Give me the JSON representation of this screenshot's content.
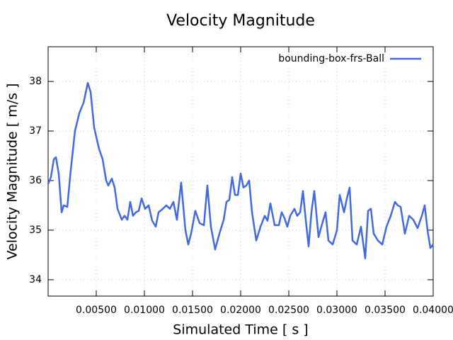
{
  "chart_data": {
    "type": "line",
    "title": "Velocity Magnitude",
    "x_label": "Simulated Time [ s ]",
    "y_label": "Velocity Magnitude [ m/s ]",
    "x": [
      0,
      0.00029,
      0.00059,
      0.00081,
      0.0011,
      0.0014,
      0.00162,
      0.00199,
      0.00235,
      0.00279,
      0.00324,
      0.00368,
      0.00412,
      0.00441,
      0.00478,
      0.00529,
      0.00566,
      0.00603,
      0.00625,
      0.00662,
      0.00691,
      0.00721,
      0.00765,
      0.00794,
      0.00824,
      0.00853,
      0.00882,
      0.00912,
      0.00941,
      0.00971,
      0.01007,
      0.01044,
      0.01081,
      0.01118,
      0.01147,
      0.01191,
      0.01228,
      0.01265,
      0.01301,
      0.01338,
      0.01382,
      0.01426,
      0.01456,
      0.01485,
      0.01529,
      0.01574,
      0.01618,
      0.01654,
      0.01691,
      0.01735,
      0.01779,
      0.01824,
      0.01853,
      0.01882,
      0.01912,
      0.01941,
      0.01971,
      0.02,
      0.02029,
      0.02059,
      0.02088,
      0.02118,
      0.02162,
      0.02206,
      0.0225,
      0.02279,
      0.02309,
      0.02353,
      0.02397,
      0.02426,
      0.02456,
      0.02485,
      0.02515,
      0.02559,
      0.02588,
      0.02618,
      0.02647,
      0.02676,
      0.02706,
      0.02735,
      0.02765,
      0.02809,
      0.02838,
      0.02882,
      0.02912,
      0.02956,
      0.03,
      0.03029,
      0.03074,
      0.03103,
      0.03132,
      0.03162,
      0.03206,
      0.0325,
      0.03294,
      0.03324,
      0.03353,
      0.03382,
      0.03426,
      0.03471,
      0.03515,
      0.03559,
      0.03603,
      0.03632,
      0.03662,
      0.03706,
      0.0375,
      0.03794,
      0.03838,
      0.03882,
      0.03912,
      0.03941,
      0.03971,
      0.04
    ],
    "series": [
      {
        "name": "bounding-box-frs-Ball",
        "color": "#4169e1",
        "values": [
          35.93,
          36.07,
          36.43,
          36.47,
          36.14,
          35.36,
          35.5,
          35.47,
          36.21,
          37,
          37.36,
          37.57,
          37.97,
          37.79,
          37.07,
          36.64,
          36.43,
          36,
          35.9,
          36.04,
          35.86,
          35.43,
          35.21,
          35.29,
          35.21,
          35.57,
          35.29,
          35.36,
          35.39,
          35.64,
          35.43,
          35.5,
          35.19,
          35.07,
          35.36,
          35.43,
          35.5,
          35.43,
          35.57,
          35.21,
          35.96,
          35,
          34.71,
          34.93,
          35.39,
          35.14,
          35.1,
          35.9,
          35.07,
          34.61,
          34.93,
          35.21,
          35.57,
          35.61,
          36.07,
          35.71,
          35.71,
          36.14,
          35.86,
          35.9,
          36,
          35.36,
          34.79,
          35.07,
          35.29,
          35.19,
          35.54,
          35.1,
          35.1,
          35.36,
          35.24,
          35.07,
          35.29,
          35.43,
          35.29,
          35.36,
          35.79,
          35.21,
          34.67,
          35.36,
          35.79,
          34.86,
          35.07,
          35.36,
          34.79,
          34.71,
          35,
          35.71,
          35.36,
          35.64,
          35.86,
          34.79,
          34.71,
          35.07,
          34.43,
          35.39,
          35.43,
          34.93,
          34.79,
          34.71,
          35.07,
          35.29,
          35.57,
          35.5,
          35.47,
          34.93,
          35.29,
          35.21,
          35.04,
          35.29,
          35.5,
          35,
          34.64,
          34.71
        ]
      }
    ],
    "xlim": [
      0,
      0.04
    ],
    "ylim": [
      33.67,
      38.7
    ],
    "xticks": [
      {
        "value": 0.005,
        "label": "0.00500"
      },
      {
        "value": 0.01,
        "label": "0.01000"
      },
      {
        "value": 0.015,
        "label": "0.01500"
      },
      {
        "value": 0.02,
        "label": "0.02000"
      },
      {
        "value": 0.025,
        "label": "0.02500"
      },
      {
        "value": 0.03,
        "label": "0.03000"
      },
      {
        "value": 0.035,
        "label": "0.03500"
      },
      {
        "value": 0.04,
        "label": "0.04000"
      }
    ],
    "yticks": [
      34,
      35,
      36,
      37,
      38
    ],
    "grid": true,
    "legend": "top-right"
  }
}
